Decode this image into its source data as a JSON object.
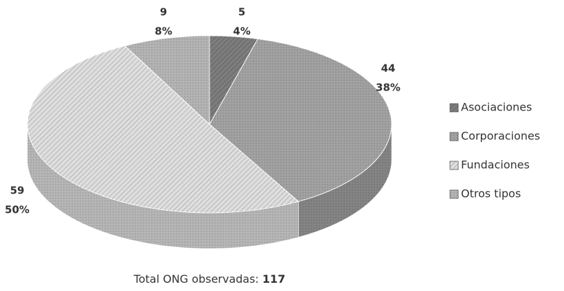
{
  "chart_data": {
    "type": "pie",
    "categories": [
      "Asociaciones",
      "Corporaciones",
      "Fundaciones",
      "Otros tipos"
    ],
    "values": [
      5,
      44,
      59,
      9
    ],
    "percent_labels": [
      "4%",
      "38%",
      "50%",
      "8%"
    ],
    "colors": [
      "#7d7d7d",
      "#a2a2a2",
      "#dedede",
      "#b4b4b4"
    ],
    "legend": "right",
    "total_label": "Total ONG observadas:",
    "total": 117
  }
}
